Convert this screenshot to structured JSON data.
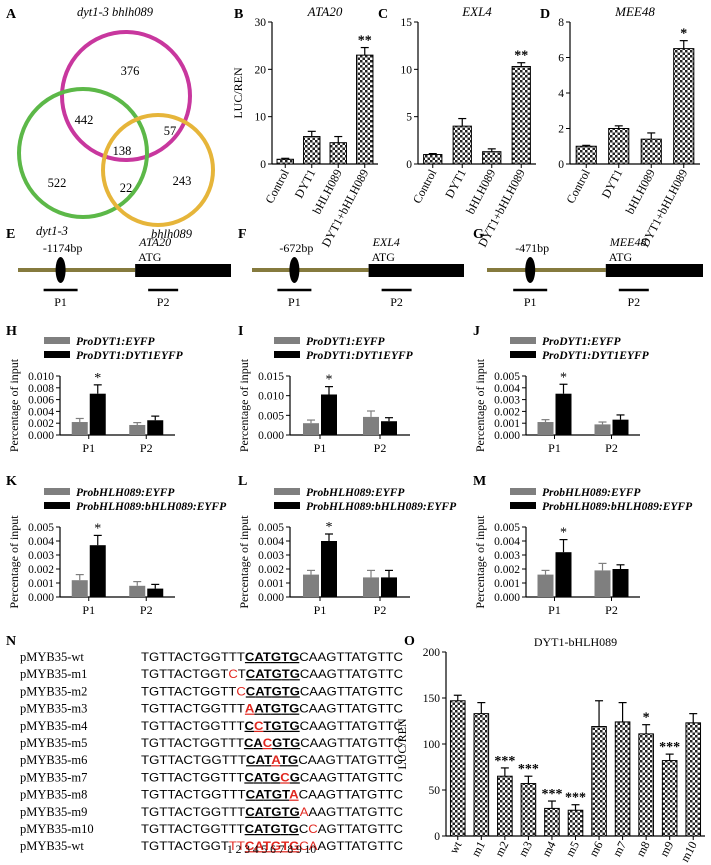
{
  "panel_letters": [
    "A",
    "B",
    "C",
    "D",
    "E",
    "F",
    "G",
    "H",
    "I",
    "J",
    "K",
    "L",
    "M",
    "N",
    "O"
  ],
  "venn": {
    "sets": [
      {
        "name": "dyt1-3 bhlh089",
        "color": "#c8379e"
      },
      {
        "name": "dyt1-3",
        "color": "#5cb848"
      },
      {
        "name": "bhlh089",
        "color": "#e6b53a"
      }
    ],
    "counts": {
      "magenta_only": "376",
      "green_only": "522",
      "yellow_only": "243",
      "magenta_green": "442",
      "magenta_yellow": "57",
      "green_yellow": "22",
      "all_three": "138"
    }
  },
  "chart_data": [
    {
      "type": "bar",
      "panel": "B",
      "title": "ATA20",
      "ylabel": "LUC/REN",
      "ylim": [
        0,
        30
      ],
      "yticks": [
        "0",
        "10",
        "20",
        "30"
      ],
      "categories": [
        "Control",
        "DYT1",
        "bHLH089",
        "DYT1+bHLH089"
      ],
      "values": [
        1.0,
        5.8,
        4.5,
        23.0
      ],
      "errors": [
        0.2,
        1.1,
        1.3,
        1.6
      ],
      "significance": [
        "",
        "",
        "",
        "**"
      ]
    },
    {
      "type": "bar",
      "panel": "C",
      "title": "EXL4",
      "ylim": [
        0,
        15
      ],
      "yticks": [
        "0",
        "5",
        "10",
        "15"
      ],
      "categories": [
        "Control",
        "DYT1",
        "bHLH089",
        "DYT1+bHLH089"
      ],
      "values": [
        1.0,
        4.0,
        1.3,
        10.3
      ],
      "errors": [
        0.1,
        0.8,
        0.3,
        0.4
      ],
      "significance": [
        "",
        "",
        "",
        "**"
      ]
    },
    {
      "type": "bar",
      "panel": "D",
      "title": "MEE48",
      "ylim": [
        0,
        8
      ],
      "yticks": [
        "0",
        "2",
        "4",
        "6",
        "8"
      ],
      "categories": [
        "Control",
        "DYT1",
        "bHLH089",
        "DYT1+bHLH089"
      ],
      "values": [
        1.0,
        2.0,
        1.4,
        6.5
      ],
      "errors": [
        0.05,
        0.15,
        0.35,
        0.45
      ],
      "significance": [
        "",
        "",
        "",
        "*"
      ]
    },
    {
      "type": "bar",
      "panel": "H",
      "ylabel": "Percentage of input",
      "ylim": [
        0,
        0.01
      ],
      "yticks": [
        "0.000",
        "0.002",
        "0.004",
        "0.006",
        "0.008",
        "0.010"
      ],
      "categories": [
        "P1",
        "P2"
      ],
      "series": [
        {
          "name": "ProDYT1:EYFP",
          "values": [
            0.0022,
            0.0017
          ],
          "errors": [
            0.0006,
            0.0004
          ]
        },
        {
          "name": "ProDYT1:DYT1EYFP",
          "values": [
            0.007,
            0.0025
          ],
          "errors": [
            0.0015,
            0.0007
          ]
        }
      ],
      "significance": [
        "*",
        ""
      ]
    },
    {
      "type": "bar",
      "panel": "I",
      "ylabel": "Percentage of input",
      "ylim": [
        0,
        0.015
      ],
      "yticks": [
        "0.000",
        "0.005",
        "0.010",
        "0.015"
      ],
      "categories": [
        "P1",
        "P2"
      ],
      "series": [
        {
          "name": "ProDYT1:EYFP",
          "values": [
            0.003,
            0.0046
          ],
          "errors": [
            0.0008,
            0.0015
          ]
        },
        {
          "name": "ProDYT1:DYT1EYFP",
          "values": [
            0.0103,
            0.0035
          ],
          "errors": [
            0.002,
            0.0009
          ]
        }
      ],
      "significance": [
        "*",
        ""
      ]
    },
    {
      "type": "bar",
      "panel": "J",
      "ylabel": "Percentage of input",
      "ylim": [
        0,
        0.005
      ],
      "yticks": [
        "0.000",
        "0.001",
        "0.002",
        "0.003",
        "0.004",
        "0.005"
      ],
      "categories": [
        "P1",
        "P2"
      ],
      "series": [
        {
          "name": "ProDYT1:EYFP",
          "values": [
            0.0011,
            0.0009
          ],
          "errors": [
            0.0002,
            0.0002
          ]
        },
        {
          "name": "ProDYT1:DYT1EYFP",
          "values": [
            0.0035,
            0.0013
          ],
          "errors": [
            0.0008,
            0.0004
          ]
        }
      ],
      "significance": [
        "*",
        ""
      ]
    },
    {
      "type": "bar",
      "panel": "K",
      "ylabel": "Percentage of input",
      "ylim": [
        0,
        0.005
      ],
      "yticks": [
        "0.000",
        "0.001",
        "0.002",
        "0.003",
        "0.004",
        "0.005"
      ],
      "categories": [
        "P1",
        "P2"
      ],
      "series": [
        {
          "name": "ProbHLH089:EYFP",
          "values": [
            0.0012,
            0.0008
          ],
          "errors": [
            0.0004,
            0.0003
          ]
        },
        {
          "name": "ProbHLH089:bHLH089:EYFP",
          "values": [
            0.0037,
            0.0006
          ],
          "errors": [
            0.0007,
            0.0003
          ]
        }
      ],
      "significance": [
        "*",
        ""
      ]
    },
    {
      "type": "bar",
      "panel": "L",
      "ylabel": "Percentage of input",
      "ylim": [
        0,
        0.005
      ],
      "yticks": [
        "0.000",
        "0.001",
        "0.002",
        "0.003",
        "0.004",
        "0.005"
      ],
      "categories": [
        "P1",
        "P2"
      ],
      "series": [
        {
          "name": "ProbHLH089:EYFP",
          "values": [
            0.0016,
            0.0014
          ],
          "errors": [
            0.0003,
            0.0005
          ]
        },
        {
          "name": "ProbHLH089:bHLH089:EYFP",
          "values": [
            0.004,
            0.0014
          ],
          "errors": [
            0.0005,
            0.0005
          ]
        }
      ],
      "significance": [
        "*",
        ""
      ]
    },
    {
      "type": "bar",
      "panel": "M",
      "ylabel": "Percentage of input",
      "ylim": [
        0,
        0.005
      ],
      "yticks": [
        "0.000",
        "0.001",
        "0.002",
        "0.003",
        "0.004",
        "0.005"
      ],
      "categories": [
        "P1",
        "P2"
      ],
      "series": [
        {
          "name": "ProbHLH089:EYFP",
          "values": [
            0.0016,
            0.0019
          ],
          "errors": [
            0.0003,
            0.0005
          ]
        },
        {
          "name": "ProbHLH089:bHLH089:EYFP",
          "values": [
            0.0032,
            0.002
          ],
          "errors": [
            0.0009,
            0.0003
          ]
        }
      ],
      "significance": [
        "*",
        ""
      ]
    },
    {
      "type": "bar",
      "panel": "O",
      "title": "DYT1-bHLH089",
      "ylabel": "LUC/REN",
      "ylim": [
        0,
        200
      ],
      "yticks": [
        "0",
        "50",
        "100",
        "150",
        "200"
      ],
      "categories": [
        "wt",
        "m1",
        "m2",
        "m3",
        "m4",
        "m5",
        "m6",
        "m7",
        "m8",
        "m9",
        "m10"
      ],
      "values": [
        147,
        133,
        65,
        57,
        30,
        28,
        119,
        124,
        111,
        82,
        123
      ],
      "errors": [
        6,
        12,
        9,
        8,
        8,
        6,
        28,
        21,
        10,
        7,
        10
      ],
      "significance": [
        "",
        "",
        "***",
        "***",
        "***",
        "***",
        "",
        "",
        "*",
        "***",
        ""
      ]
    }
  ],
  "gene_diagrams": [
    {
      "panel": "E",
      "distance": "-1174bp",
      "gene": "ATA20",
      "atg": "ATG",
      "p1": "P1",
      "p2": "P2"
    },
    {
      "panel": "F",
      "distance": "-672bp",
      "gene": "EXL4",
      "atg": "ATG",
      "p1": "P1",
      "p2": "P2"
    },
    {
      "panel": "G",
      "distance": "-471bp",
      "gene": "MEE48",
      "atg": "ATG",
      "p1": "P1",
      "p2": "P2"
    }
  ],
  "sequences": {
    "rows": [
      {
        "label": "pMYB35-wt",
        "seq": "TGTTACTGGTTTCATGTGCAAGTTATGTTC",
        "red": []
      },
      {
        "label": "pMYB35-m1",
        "seq": "TGTTACTGGTCTCATGTGCAAGTTATGTTC",
        "red": [
          10
        ]
      },
      {
        "label": "pMYB35-m2",
        "seq": "TGTTACTGGTTCCATGTGCAAGTTATGTTC",
        "red": [
          11
        ]
      },
      {
        "label": "pMYB35-m3",
        "seq": "TGTTACTGGTTTAATGTGCAAGTTATGTTC",
        "red": [
          12
        ]
      },
      {
        "label": "pMYB35-m4",
        "seq": "TGTTACTGGTTTCCTGTGCAAGTTATGTTC",
        "red": [
          13
        ]
      },
      {
        "label": "pMYB35-m5",
        "seq": "TGTTACTGGTTTCACGTGCAAGTTATGTTC",
        "red": [
          14
        ]
      },
      {
        "label": "pMYB35-m6",
        "seq": "TGTTACTGGTTTCATATGCAAGTTATGTTC",
        "red": [
          15
        ]
      },
      {
        "label": "pMYB35-m7",
        "seq": "TGTTACTGGTTTCATGCGCAAGTTATGTTC",
        "red": [
          16
        ]
      },
      {
        "label": "pMYB35-m8",
        "seq": "TGTTACTGGTTTCATGTACAAGTTATGTTC",
        "red": [
          17
        ]
      },
      {
        "label": "pMYB35-m9",
        "seq": "TGTTACTGGTTTCATGTGAAAGTTATGTTC",
        "red": [
          18
        ]
      },
      {
        "label": "pMYB35-m10",
        "seq": "TGTTACTGGTTTCATGTGCCAGTTATGTTC",
        "red": [
          19
        ]
      },
      {
        "label": "pMYB35-wt",
        "seq": "TGTTACTGGTTTCATGTGCAAGTTATGTTC",
        "red": [
          10,
          11,
          12,
          13,
          14,
          15,
          16,
          17,
          18,
          19
        ]
      }
    ],
    "motif_range": [
      12,
      17
    ],
    "position_numbers": "1 2 3 4 5 6 7 8 9 10"
  }
}
